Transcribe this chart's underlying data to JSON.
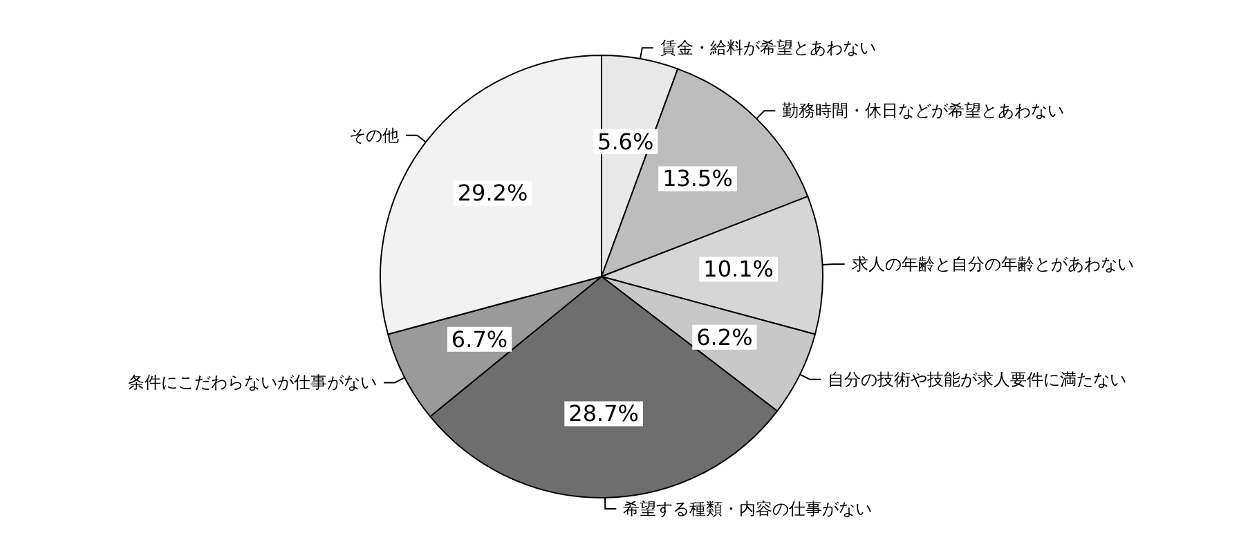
{
  "chart_data": {
    "type": "pie",
    "categories": [
      "賃金・給料が希望とあわない",
      "勤務時間・休日などが希望とあわない",
      "求人の年齢と自分の年齢とがあわない",
      "自分の技術や技能が求人要件に満たない",
      "希望する種類・内容の仕事がない",
      "条件にこだわらないが仕事がない",
      "その他"
    ],
    "values": [
      5.6,
      13.5,
      10.1,
      6.2,
      28.7,
      6.7,
      29.2
    ],
    "value_labels": [
      "5.6%",
      "13.5%",
      "10.1%",
      "6.2%",
      "28.7%",
      "6.7%",
      "29.2%"
    ],
    "colors": [
      "#e8e8e8",
      "#bdbdbd",
      "#d6d6d6",
      "#c8c8c8",
      "#6e6e6e",
      "#9a9a9a",
      "#f2f2f2"
    ],
    "legend": false
  }
}
